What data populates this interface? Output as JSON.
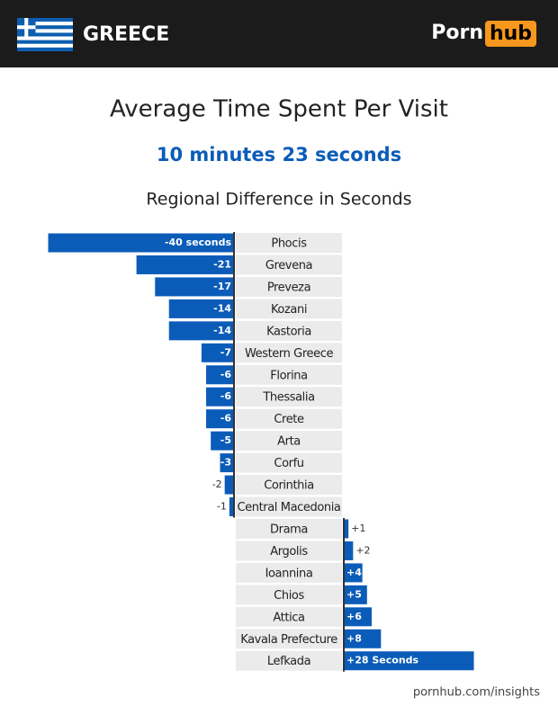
{
  "header": {
    "country": "GREECE",
    "logo_left": "Porn",
    "logo_right": "hub"
  },
  "chart_data": {
    "type": "bar",
    "orientation": "horizontal",
    "title": "Average Time Spent Per Visit",
    "subtitle": "10 minutes 23 seconds",
    "axis_title": "Regional Difference in Seconds",
    "categories": [
      "Phocis",
      "Grevena",
      "Preveza",
      "Kozani",
      "Kastoria",
      "Western Greece",
      "Florina",
      "Thessalia",
      "Crete",
      "Arta",
      "Corfu",
      "Corinthia",
      "Central Macedonia",
      "Drama",
      "Argolis",
      "Ioannina",
      "Chios",
      "Attica",
      "Kavala Prefecture",
      "Lefkada"
    ],
    "values": [
      -40,
      -21,
      -17,
      -14,
      -14,
      -7,
      -6,
      -6,
      -6,
      -5,
      -3,
      -2,
      -1,
      1,
      2,
      4,
      5,
      6,
      8,
      28
    ],
    "value_labels": [
      "-40 seconds",
      "-21",
      "-17",
      "-14",
      "-14",
      "-7",
      "-6",
      "-6",
      "-6",
      "-5",
      "-3",
      "-2",
      "-1",
      "+1",
      "+2",
      "+4",
      "+5",
      "+6",
      "+8",
      "+28 Seconds"
    ],
    "color": "#0b5cb8",
    "xlim": [
      -40,
      28
    ]
  },
  "footer": {
    "source": "pornhub.com/insights"
  }
}
